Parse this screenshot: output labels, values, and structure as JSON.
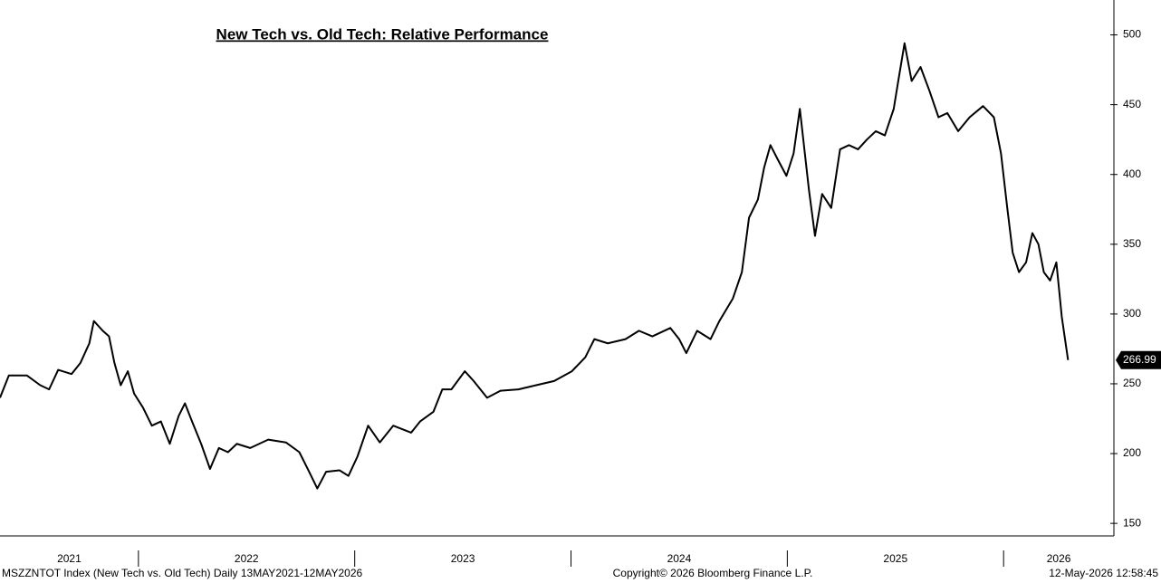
{
  "chart_data": {
    "type": "line",
    "title": "New Tech vs. Old Tech: Relative Performance",
    "source": "MSZZNTOT Index (New Tech vs. Old Tech) Daily 13MAY2021-12MAY2026",
    "copyright": "Copyright© 2026 Bloomberg Finance L.P.",
    "timestamp": "12-May-2026 12:58:45",
    "x": [
      2021.36,
      2021.401,
      2021.484,
      2021.546,
      2021.587,
      2021.629,
      2021.691,
      2021.732,
      2021.773,
      2021.794,
      2021.835,
      2021.864,
      2021.889,
      2021.918,
      2021.951,
      2021.98,
      2022.021,
      2022.062,
      2022.104,
      2022.145,
      2022.186,
      2022.215,
      2022.248,
      2022.29,
      2022.331,
      2022.372,
      2022.414,
      2022.455,
      2022.517,
      2022.6,
      2022.682,
      2022.744,
      2022.786,
      2022.827,
      2022.868,
      2022.93,
      2022.971,
      2023.013,
      2023.062,
      2023.116,
      2023.178,
      2023.261,
      2023.302,
      2023.364,
      2023.405,
      2023.447,
      2023.509,
      2023.55,
      2023.612,
      2023.674,
      2023.757,
      2023.839,
      2023.922,
      2024.004,
      2024.066,
      2024.108,
      2024.17,
      2024.252,
      2024.314,
      2024.376,
      2024.459,
      2024.5,
      2024.533,
      2024.583,
      2024.645,
      2024.686,
      2024.748,
      2024.79,
      2024.823,
      2024.864,
      2024.893,
      2024.922,
      2024.955,
      2024.996,
      2025.029,
      2025.058,
      2025.1,
      2025.128,
      2025.161,
      2025.203,
      2025.244,
      2025.285,
      2025.327,
      2025.368,
      2025.409,
      2025.451,
      2025.492,
      2025.513,
      2025.542,
      2025.575,
      2025.616,
      2025.657,
      2025.699,
      2025.74,
      2025.79,
      2025.843,
      2025.905,
      2025.955,
      2025.988,
      2026.017,
      2026.042,
      2026.071,
      2026.104,
      2026.133,
      2026.161,
      2026.186,
      2026.215,
      2026.244,
      2026.269,
      2026.298
    ],
    "series": [
      {
        "name": "MSZZNTOT Index",
        "color": "#000000",
        "values": [
          240,
          256,
          256,
          249,
          246,
          260,
          257,
          265,
          279,
          295,
          288,
          284,
          265,
          249,
          259,
          243,
          233,
          220,
          223,
          207,
          227,
          236,
          223,
          207,
          189,
          204,
          201,
          207,
          204,
          210,
          208,
          201,
          188,
          175,
          187,
          188,
          184,
          198,
          220,
          208,
          220,
          215,
          223,
          230,
          246,
          246,
          259,
          252,
          240,
          245,
          246,
          249,
          252,
          259,
          269,
          282,
          279,
          282,
          288,
          284,
          290,
          282,
          272,
          288,
          282,
          295,
          311,
          330,
          369,
          382,
          405,
          421,
          411,
          399,
          415,
          447,
          389,
          356,
          386,
          376,
          418,
          421,
          418,
          425,
          431,
          428,
          447,
          467,
          494,
          467,
          477,
          460,
          441,
          444,
          431,
          441,
          449,
          441,
          415,
          376,
          344,
          330,
          337,
          358,
          350,
          330,
          324,
          337,
          298,
          266.99
        ]
      }
    ],
    "xlim": [
      2021.36,
      2026.51
    ],
    "xticks": [
      2021,
      2022,
      2023,
      2024,
      2025,
      2026
    ],
    "ylim": [
      141,
      525
    ],
    "yticks": [
      150,
      200,
      250,
      300,
      350,
      400,
      450,
      500
    ]
  }
}
